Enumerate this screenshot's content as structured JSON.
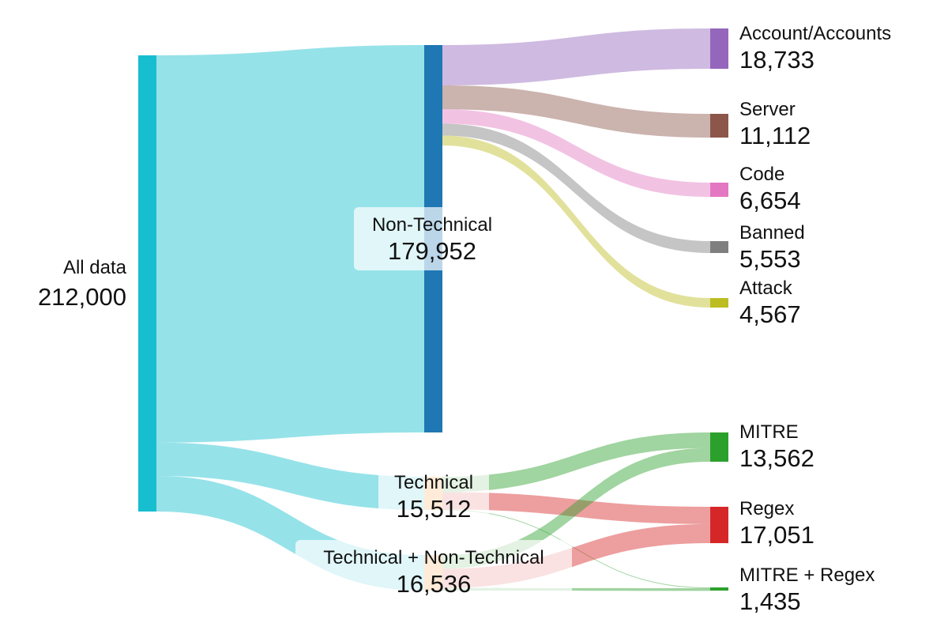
{
  "chart_data": {
    "type": "sankey",
    "title": "",
    "nodes": [
      {
        "id": "all",
        "label": "All data",
        "value_text": "212,000",
        "value": 212000,
        "color": "#17becf"
      },
      {
        "id": "nontech",
        "label": "Non-Technical",
        "value_text": "179,952",
        "value": 179952,
        "color": "#1f77b4"
      },
      {
        "id": "tech",
        "label": "Technical",
        "value_text": "15,512",
        "value": 15512,
        "color": "#ffbb78"
      },
      {
        "id": "both",
        "label": "Technical + Non-Technical",
        "value_text": "16,536",
        "value": 16536,
        "color": "#ffbb78"
      },
      {
        "id": "account",
        "label": "Account/Accounts",
        "value_text": "18,733",
        "value": 18733,
        "color": "#9467bd"
      },
      {
        "id": "server",
        "label": "Server",
        "value_text": "11,112",
        "value": 11112,
        "color": "#8c564b"
      },
      {
        "id": "code",
        "label": "Code",
        "value_text": "6,654",
        "value": 6654,
        "color": "#e377c2"
      },
      {
        "id": "banned",
        "label": "Banned",
        "value_text": "5,553",
        "value": 5553,
        "color": "#7f7f7f"
      },
      {
        "id": "attack",
        "label": "Attack",
        "value_text": "4,567",
        "value": 4567,
        "color": "#bcbd22"
      },
      {
        "id": "mitre",
        "label": "MITRE",
        "value_text": "13,562",
        "value": 13562,
        "color": "#2ca02c"
      },
      {
        "id": "regex",
        "label": "Regex",
        "value_text": "17,051",
        "value": 17051,
        "color": "#d62728"
      },
      {
        "id": "mitreregex",
        "label": "MITRE + Regex",
        "value_text": "1,435",
        "value": 1435,
        "color": "#2ca02c"
      }
    ],
    "links": [
      {
        "source": "all",
        "target": "nontech",
        "value": 179952,
        "color": "#17becf"
      },
      {
        "source": "all",
        "target": "tech",
        "value": 15512,
        "color": "#17becf"
      },
      {
        "source": "all",
        "target": "both",
        "value": 16536,
        "color": "#17becf"
      },
      {
        "source": "nontech",
        "target": "account",
        "value": 18733,
        "color": "#9467bd"
      },
      {
        "source": "nontech",
        "target": "server",
        "value": 11112,
        "color": "#8c564b"
      },
      {
        "source": "nontech",
        "target": "code",
        "value": 6654,
        "color": "#e377c2"
      },
      {
        "source": "nontech",
        "target": "banned",
        "value": 5553,
        "color": "#7f7f7f"
      },
      {
        "source": "nontech",
        "target": "attack",
        "value": 4567,
        "color": "#bcbd22"
      },
      {
        "source": "tech",
        "target": "mitre",
        "value": 7200,
        "color": "#2ca02c"
      },
      {
        "source": "tech",
        "target": "regex",
        "value": 8100,
        "color": "#d62728"
      },
      {
        "source": "tech",
        "target": "mitreregex",
        "value": 212,
        "color": "#2ca02c"
      },
      {
        "source": "both",
        "target": "mitre",
        "value": 6362,
        "color": "#2ca02c"
      },
      {
        "source": "both",
        "target": "regex",
        "value": 8951,
        "color": "#d62728"
      },
      {
        "source": "both",
        "target": "mitreregex",
        "value": 1223,
        "color": "#2ca02c"
      }
    ]
  }
}
